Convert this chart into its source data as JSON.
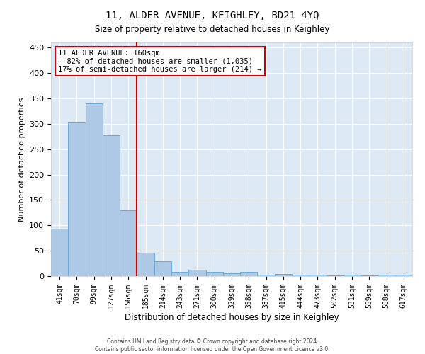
{
  "title": "11, ALDER AVENUE, KEIGHLEY, BD21 4YQ",
  "subtitle": "Size of property relative to detached houses in Keighley",
  "xlabel": "Distribution of detached houses by size in Keighley",
  "ylabel": "Number of detached properties",
  "footnote1": "Contains HM Land Registry data © Crown copyright and database right 2024.",
  "footnote2": "Contains public sector information licensed under the Open Government Licence v3.0.",
  "categories": [
    "41sqm",
    "70sqm",
    "99sqm",
    "127sqm",
    "156sqm",
    "185sqm",
    "214sqm",
    "243sqm",
    "271sqm",
    "300sqm",
    "329sqm",
    "358sqm",
    "387sqm",
    "415sqm",
    "444sqm",
    "473sqm",
    "502sqm",
    "531sqm",
    "559sqm",
    "588sqm",
    "617sqm"
  ],
  "values": [
    93,
    302,
    340,
    278,
    130,
    46,
    29,
    9,
    12,
    9,
    6,
    9,
    3,
    4,
    3,
    3,
    1,
    3,
    1,
    3,
    3
  ],
  "vline_x": 4.5,
  "annotation_title": "11 ALDER AVENUE: 160sqm",
  "annotation_line1": "← 82% of detached houses are smaller (1,035)",
  "annotation_line2": "17% of semi-detached houses are larger (214) →",
  "bar_color": "#aec9e5",
  "bar_edge_color": "#6aaad4",
  "vline_color": "#cc0000",
  "annotation_box_edge_color": "#cc0000",
  "annotation_box_face_color": "#ffffff",
  "grid_color": "#ffffff",
  "background_color": "#dce9f5",
  "ylim": [
    0,
    460
  ],
  "yticks": [
    0,
    50,
    100,
    150,
    200,
    250,
    300,
    350,
    400,
    450
  ]
}
